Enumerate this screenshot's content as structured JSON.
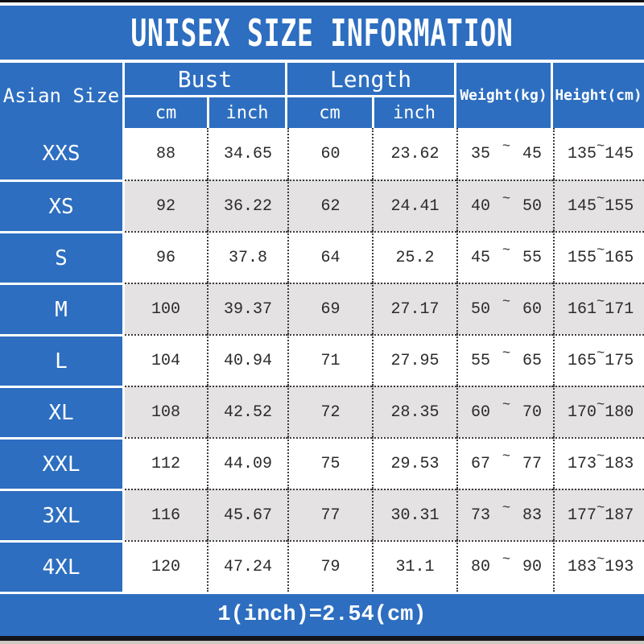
{
  "title": "UNISEX SIZE INFORMATION",
  "footer_note": "1(inch)=2.54(cm)",
  "colors": {
    "accent_blue": "#2d6ec0",
    "alt_row_gray": "#e4e2e3",
    "top_bottom_bar": "#0f0f0f",
    "header_text": "#ffffff",
    "data_text": "#2b2b2b"
  },
  "header": {
    "corner": "Asian Size",
    "bust": "Bust",
    "length": "Length",
    "cm": "cm",
    "inch": "inch",
    "weight": "Weight(kg)",
    "height": "Height(cm)"
  },
  "tilde": "~",
  "rows": [
    {
      "size": "XXS",
      "bust_cm": "88",
      "bust_inch": "34.65",
      "length_cm": "60",
      "length_inch": "23.62",
      "weight_min": "35",
      "weight_max": "45",
      "height_min": "135",
      "height_max": "145"
    },
    {
      "size": "XS",
      "bust_cm": "92",
      "bust_inch": "36.22",
      "length_cm": "62",
      "length_inch": "24.41",
      "weight_min": "40",
      "weight_max": "50",
      "height_min": "145",
      "height_max": "155"
    },
    {
      "size": "S",
      "bust_cm": "96",
      "bust_inch": "37.8",
      "length_cm": "64",
      "length_inch": "25.2",
      "weight_min": "45",
      "weight_max": "55",
      "height_min": "155",
      "height_max": "165"
    },
    {
      "size": "M",
      "bust_cm": "100",
      "bust_inch": "39.37",
      "length_cm": "69",
      "length_inch": "27.17",
      "weight_min": "50",
      "weight_max": "60",
      "height_min": "161",
      "height_max": "171"
    },
    {
      "size": "L",
      "bust_cm": "104",
      "bust_inch": "40.94",
      "length_cm": "71",
      "length_inch": "27.95",
      "weight_min": "55",
      "weight_max": "65",
      "height_min": "165",
      "height_max": "175"
    },
    {
      "size": "XL",
      "bust_cm": "108",
      "bust_inch": "42.52",
      "length_cm": "72",
      "length_inch": "28.35",
      "weight_min": "60",
      "weight_max": "70",
      "height_min": "170",
      "height_max": "180"
    },
    {
      "size": "XXL",
      "bust_cm": "112",
      "bust_inch": "44.09",
      "length_cm": "75",
      "length_inch": "29.53",
      "weight_min": "67",
      "weight_max": "77",
      "height_min": "173",
      "height_max": "183"
    },
    {
      "size": "3XL",
      "bust_cm": "116",
      "bust_inch": "45.67",
      "length_cm": "77",
      "length_inch": "30.31",
      "weight_min": "73",
      "weight_max": "83",
      "height_min": "177",
      "height_max": "187"
    },
    {
      "size": "4XL",
      "bust_cm": "120",
      "bust_inch": "47.24",
      "length_cm": "79",
      "length_inch": "31.1",
      "weight_min": "80",
      "weight_max": "90",
      "height_min": "183",
      "height_max": "193"
    }
  ]
}
